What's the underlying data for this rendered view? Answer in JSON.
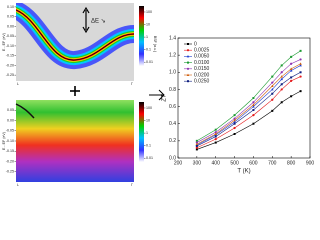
{
  "chart_data": [
    {
      "type": "heatmap",
      "ylabel": "E - EF (eV)",
      "ylim": [
        -0.28,
        0.12
      ],
      "yticks": [
        {
          "value": 0.1,
          "label": "0.10"
        },
        0.05,
        {
          "value": 0,
          "label": "0.00"
        },
        -0.05,
        {
          "value": -0.1,
          "label": "-0.10"
        },
        -0.15,
        {
          "value": -0.2,
          "label": "-0.20"
        },
        -0.25
      ],
      "categories": [
        "L",
        "Γ"
      ],
      "annotation": "ΔE ↘",
      "colorbar": {
        "label": "BSF (a.u.)",
        "clim": [
          0.005,
          300
        ],
        "log": true,
        "ticks": [
          100,
          10,
          1,
          0.1,
          0.01
        ]
      }
    },
    {
      "type": "heatmap",
      "ylabel": "E - EF (eV)",
      "ylim": [
        -0.3,
        0.1
      ],
      "yticks": [
        0.05,
        {
          "value": 0,
          "label": "0.00"
        },
        -0.05,
        {
          "value": -0.1,
          "label": "-0.10"
        },
        -0.15,
        {
          "value": -0.2,
          "label": "-0.20"
        },
        -0.25
      ],
      "categories": [
        "L",
        "Γ"
      ],
      "colorbar": {
        "clim": [
          0.005,
          300
        ],
        "log": true,
        "ticks": [
          100,
          10,
          1,
          0.1,
          0.01
        ]
      }
    },
    {
      "type": "line",
      "xlabel": "T (K)",
      "ylabel": "ZT",
      "legend": "upper left",
      "xlim": [
        200,
        900
      ],
      "xticks": [
        200,
        300,
        400,
        500,
        600,
        700,
        800,
        900
      ],
      "ylim": [
        0,
        1.4
      ],
      "yticks": [
        {
          "value": 0,
          "label": "0.0"
        },
        0.2,
        0.4,
        0.6,
        0.8,
        {
          "value": 1,
          "label": "1.0"
        },
        1.2,
        1.4
      ],
      "x": [
        300,
        400,
        500,
        600,
        700,
        750,
        800,
        850
      ],
      "series": [
        {
          "name": "0",
          "color": "#000000",
          "values": [
            0.1,
            0.18,
            0.28,
            0.4,
            0.55,
            0.65,
            0.72,
            0.78
          ]
        },
        {
          "name": "0.0025",
          "color": "#e41a1c",
          "values": [
            0.12,
            0.22,
            0.35,
            0.5,
            0.68,
            0.8,
            0.9,
            0.95
          ]
        },
        {
          "name": "0.0050",
          "color": "#2040d0",
          "values": [
            0.15,
            0.27,
            0.42,
            0.6,
            0.8,
            0.92,
            1.02,
            1.08
          ]
        },
        {
          "name": "0.0100",
          "color": "#1a9a30",
          "values": [
            0.2,
            0.33,
            0.5,
            0.7,
            0.95,
            1.08,
            1.18,
            1.25
          ]
        },
        {
          "name": "0.0150",
          "color": "#8e30b0",
          "values": [
            0.18,
            0.3,
            0.46,
            0.65,
            0.88,
            1.0,
            1.1,
            1.15
          ]
        },
        {
          "name": "0.0200",
          "color": "#d06010",
          "values": [
            0.16,
            0.28,
            0.44,
            0.62,
            0.84,
            0.95,
            1.04,
            1.1
          ]
        },
        {
          "name": "0.0250",
          "color": "#102080",
          "values": [
            0.14,
            0.25,
            0.4,
            0.56,
            0.75,
            0.86,
            0.94,
            1.0
          ]
        }
      ]
    }
  ]
}
